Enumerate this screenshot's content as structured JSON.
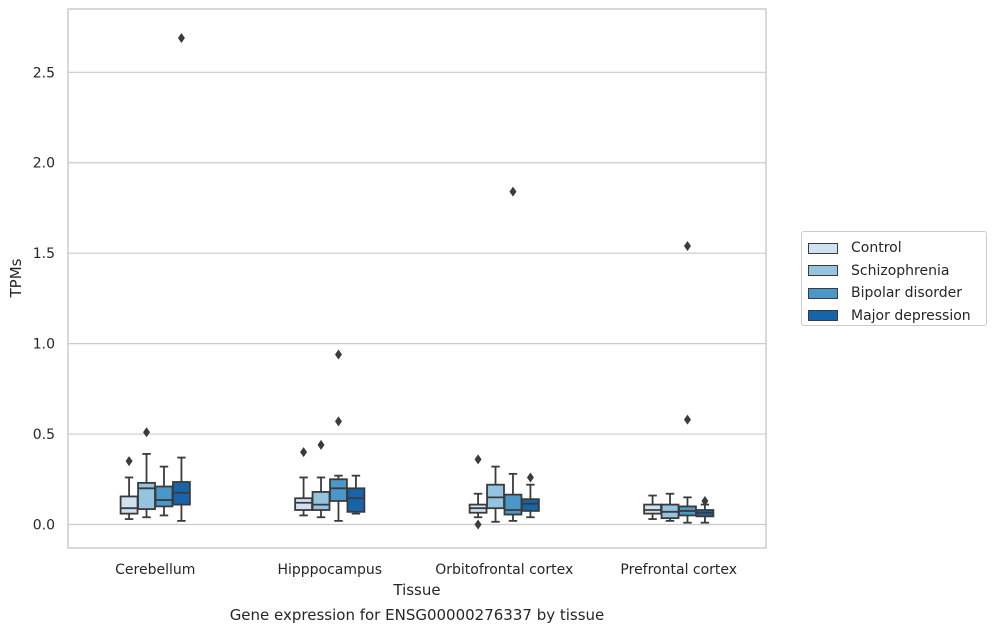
{
  "chart_data": {
    "type": "box",
    "title": "",
    "caption": "Gene expression for ENSG00000276337 by tissue",
    "xlabel": "Tissue",
    "ylabel": "TPMs",
    "ylim": [
      -0.13,
      2.85
    ],
    "yticks": [
      "0.0",
      "0.5",
      "1.0",
      "1.5",
      "2.0",
      "2.5"
    ],
    "grid": true,
    "legend_position": "right",
    "categories": [
      "Cerebellum",
      "Hipppocampus",
      "Orbitofrontal cortex",
      "Prefrontal cortex"
    ],
    "series": [
      {
        "name": "Control",
        "color": "#d0e1f2",
        "boxes": [
          {
            "whisker_low": 0.03,
            "q1": 0.06,
            "median": 0.09,
            "q3": 0.155,
            "whisker_high": 0.26,
            "outliers": [
              0.35
            ]
          },
          {
            "whisker_low": 0.05,
            "q1": 0.08,
            "median": 0.12,
            "q3": 0.145,
            "whisker_high": 0.26,
            "outliers": [
              0.4
            ]
          },
          {
            "whisker_low": 0.04,
            "q1": 0.065,
            "median": 0.09,
            "q3": 0.11,
            "whisker_high": 0.17,
            "outliers": [
              0.0,
              0.36
            ]
          },
          {
            "whisker_low": 0.03,
            "q1": 0.06,
            "median": 0.08,
            "q3": 0.11,
            "whisker_high": 0.16,
            "outliers": []
          }
        ]
      },
      {
        "name": "Schizophrenia",
        "color": "#94c4df",
        "boxes": [
          {
            "whisker_low": 0.04,
            "q1": 0.085,
            "median": 0.2,
            "q3": 0.23,
            "whisker_high": 0.39,
            "outliers": [
              0.51
            ]
          },
          {
            "whisker_low": 0.04,
            "q1": 0.08,
            "median": 0.11,
            "q3": 0.18,
            "whisker_high": 0.26,
            "outliers": [
              0.44
            ]
          },
          {
            "whisker_low": 0.015,
            "q1": 0.09,
            "median": 0.15,
            "q3": 0.22,
            "whisker_high": 0.32,
            "outliers": []
          },
          {
            "whisker_low": 0.02,
            "q1": 0.035,
            "median": 0.07,
            "q3": 0.11,
            "whisker_high": 0.17,
            "outliers": []
          }
        ]
      },
      {
        "name": "Bipolar disorder",
        "color": "#4a98c9",
        "boxes": [
          {
            "whisker_low": 0.05,
            "q1": 0.1,
            "median": 0.135,
            "q3": 0.21,
            "whisker_high": 0.32,
            "outliers": []
          },
          {
            "whisker_low": 0.02,
            "q1": 0.13,
            "median": 0.2,
            "q3": 0.25,
            "whisker_high": 0.27,
            "outliers": [
              0.57,
              0.94
            ]
          },
          {
            "whisker_low": 0.02,
            "q1": 0.055,
            "median": 0.08,
            "q3": 0.165,
            "whisker_high": 0.28,
            "outliers": [
              1.84
            ]
          },
          {
            "whisker_low": 0.01,
            "q1": 0.05,
            "median": 0.075,
            "q3": 0.1,
            "whisker_high": 0.15,
            "outliers": [
              0.58,
              1.54
            ]
          }
        ]
      },
      {
        "name": "Major depression",
        "color": "#1764ab",
        "boxes": [
          {
            "whisker_low": 0.02,
            "q1": 0.11,
            "median": 0.175,
            "q3": 0.235,
            "whisker_high": 0.37,
            "outliers": [
              2.69
            ]
          },
          {
            "whisker_low": 0.06,
            "q1": 0.07,
            "median": 0.145,
            "q3": 0.2,
            "whisker_high": 0.27,
            "outliers": []
          },
          {
            "whisker_low": 0.04,
            "q1": 0.075,
            "median": 0.115,
            "q3": 0.14,
            "whisker_high": 0.22,
            "outliers": [
              0.26
            ]
          },
          {
            "whisker_low": 0.01,
            "q1": 0.045,
            "median": 0.065,
            "q3": 0.08,
            "whisker_high": 0.11,
            "outliers": [
              0.13
            ]
          }
        ]
      }
    ]
  }
}
